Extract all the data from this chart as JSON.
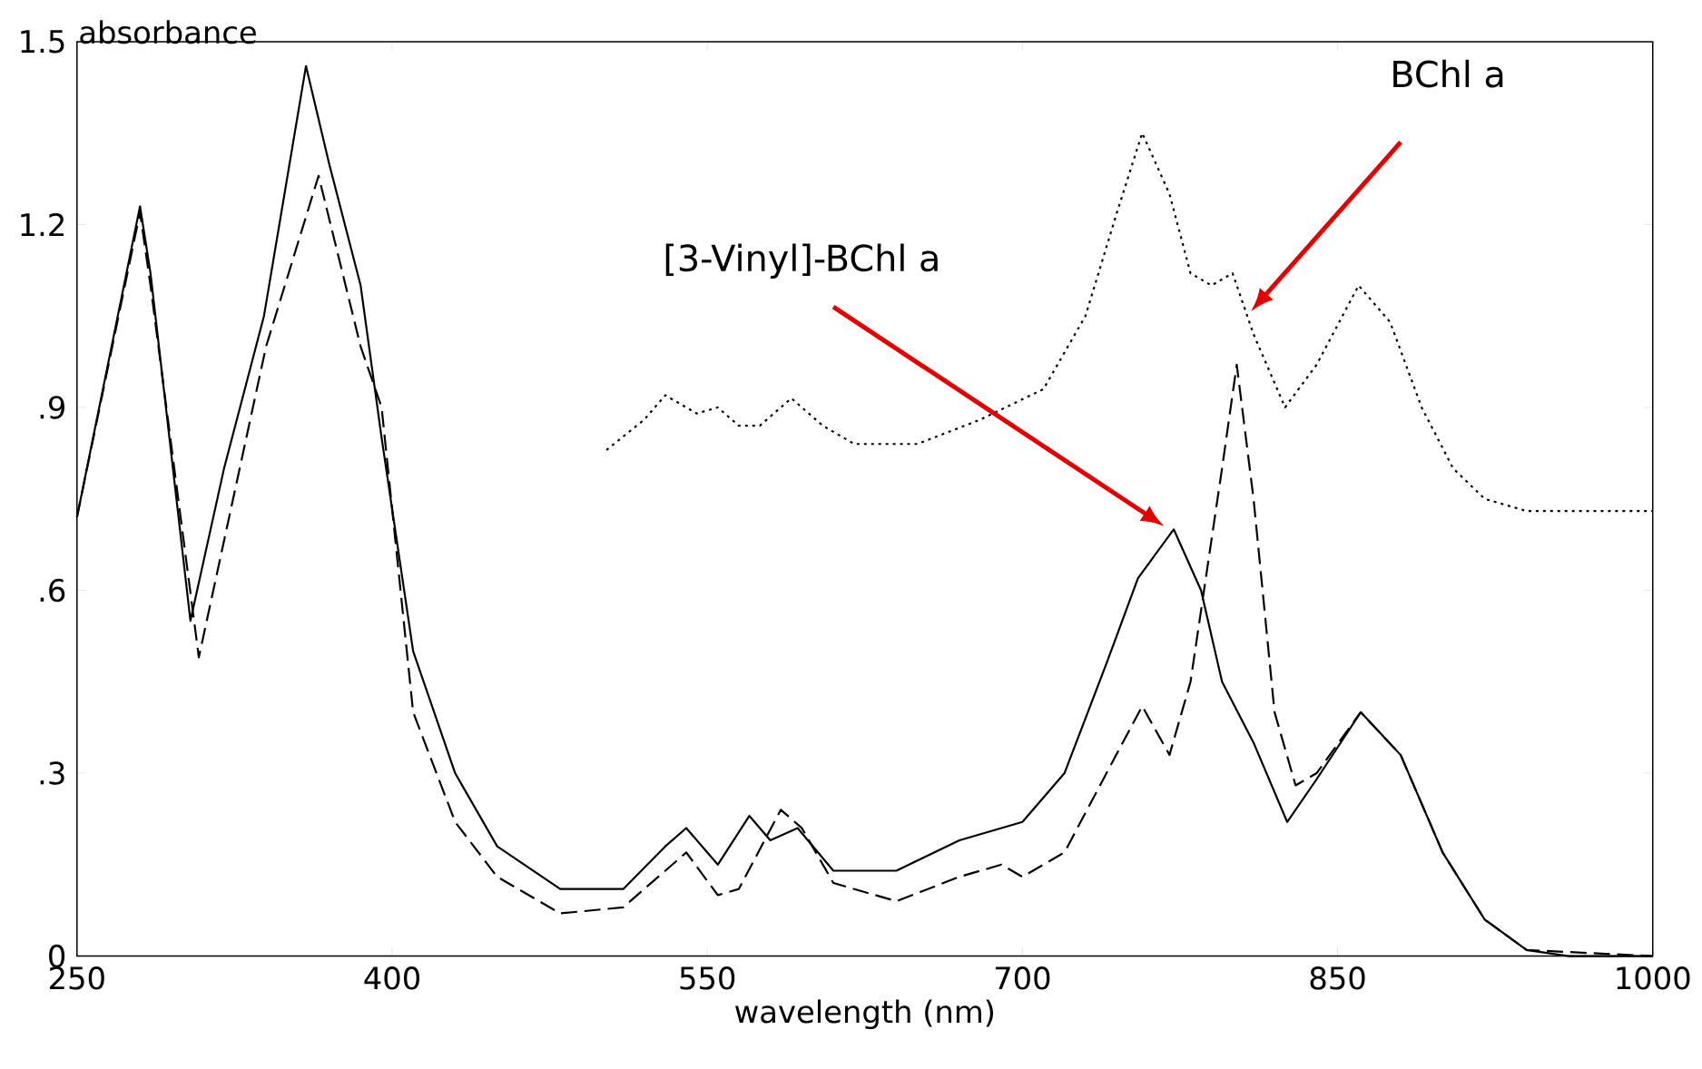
{
  "chart_data": {
    "type": "line",
    "xlabel": "wavelength (nm)",
    "ylabel": "absorbance",
    "xlim": [
      250,
      1000
    ],
    "ylim": [
      0,
      1.5
    ],
    "xticks": [
      250,
      400,
      550,
      700,
      850,
      1000
    ],
    "yticks": [
      0,
      {
        "value": 0.3,
        "label": ".3"
      },
      {
        "value": 0.6,
        "label": ".6"
      },
      {
        "value": 0.9,
        "label": ".9"
      },
      1.2,
      1.5
    ],
    "legend": false,
    "grid": false,
    "series": [
      {
        "color": "#000000",
        "line_style": "solid",
        "x": [
          250,
          280,
          285,
          304,
          320,
          339,
          359,
          370,
          385,
          395,
          410,
          430,
          450,
          480,
          510,
          530,
          540,
          555,
          570,
          580,
          593,
          610,
          640,
          670,
          700,
          720,
          740,
          755,
          772,
          785,
          795,
          810,
          826,
          840,
          861,
          880,
          900,
          920,
          940,
          960,
          1000
        ],
        "values": [
          0.72,
          1.23,
          1.12,
          0.55,
          0.8,
          1.05,
          1.46,
          1.3,
          1.1,
          0.85,
          0.5,
          0.3,
          0.18,
          0.11,
          0.11,
          0.18,
          0.21,
          0.15,
          0.23,
          0.19,
          0.21,
          0.14,
          0.14,
          0.19,
          0.22,
          0.3,
          0.48,
          0.62,
          0.7,
          0.6,
          0.45,
          0.35,
          0.22,
          0.29,
          0.4,
          0.33,
          0.17,
          0.06,
          0.01,
          0,
          0
        ]
      },
      {
        "color": "#000000",
        "line_style": "dashed",
        "x": [
          250,
          280,
          285,
          308,
          340,
          365,
          385,
          395,
          410,
          430,
          450,
          480,
          510,
          540,
          555,
          565,
          585,
          595,
          610,
          640,
          670,
          690,
          700,
          720,
          740,
          757,
          770,
          780,
          795,
          802,
          810,
          820,
          830,
          840,
          861,
          880,
          900,
          920,
          940,
          1000
        ],
        "values": [
          0.72,
          1.22,
          1.1,
          0.49,
          1.0,
          1.28,
          1.0,
          0.9,
          0.4,
          0.22,
          0.13,
          0.07,
          0.08,
          0.17,
          0.1,
          0.11,
          0.24,
          0.21,
          0.12,
          0.09,
          0.13,
          0.15,
          0.13,
          0.17,
          0.3,
          0.41,
          0.33,
          0.45,
          0.8,
          0.97,
          0.75,
          0.4,
          0.28,
          0.3,
          0.4,
          0.33,
          0.17,
          0.06,
          0.01,
          0
        ]
      },
      {
        "color": "#000000",
        "line_style": "dotted",
        "x": [
          502,
          520,
          530,
          545,
          555,
          565,
          575,
          590,
          605,
          620,
          650,
          680,
          710,
          730,
          745,
          757,
          770,
          780,
          790,
          800,
          810,
          825,
          840,
          860,
          875,
          890,
          905,
          920,
          940,
          1000
        ],
        "values": [
          0.83,
          0.88,
          0.92,
          0.89,
          0.9,
          0.87,
          0.87,
          0.915,
          0.87,
          0.84,
          0.84,
          0.88,
          0.93,
          1.05,
          1.22,
          1.35,
          1.25,
          1.12,
          1.1,
          1.12,
          1.02,
          0.9,
          0.97,
          1.1,
          1.04,
          0.9,
          0.8,
          0.75,
          0.73,
          0.73
        ]
      }
    ],
    "annotations": [
      "BChl a",
      "[3-Vinyl]-BChl a"
    ]
  }
}
